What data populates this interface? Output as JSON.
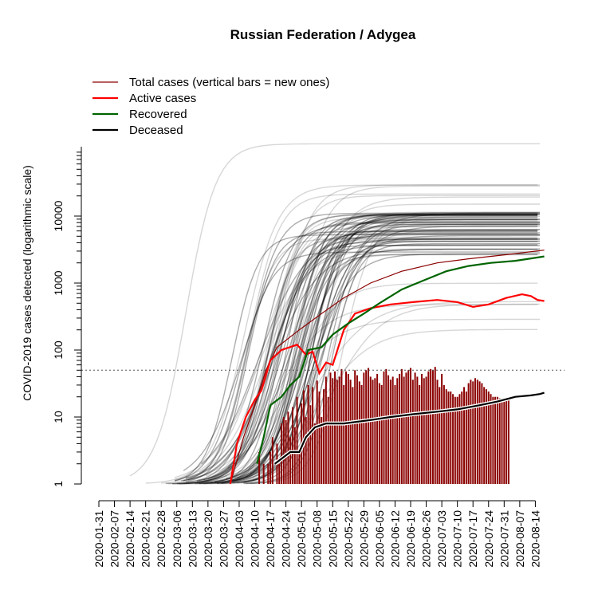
{
  "chart_data": {
    "type": "line",
    "title": "Russian Federation / Adygea",
    "xlabel": "",
    "ylabel": "COVID-2019 cases detected (logarithmic scale)",
    "y_scale": "log",
    "ylim": [
      1,
      100000
    ],
    "y_ticks": [
      1,
      10,
      100,
      1000,
      10000
    ],
    "x_tick_labels": [
      "2020-01-31",
      "2020-02-07",
      "2020-02-14",
      "2020-02-21",
      "2020-02-28",
      "2020-03-06",
      "2020-03-13",
      "2020-03-20",
      "2020-03-27",
      "2020-04-03",
      "2020-04-10",
      "2020-04-17",
      "2020-04-24",
      "2020-05-01",
      "2020-05-08",
      "2020-05-15",
      "2020-05-22",
      "2020-05-29",
      "2020-06-05",
      "2020-06-12",
      "2020-06-19",
      "2020-06-26",
      "2020-07-03",
      "2020-07-10",
      "2020-07-17",
      "2020-07-24",
      "2020-07-31",
      "2020-08-07",
      "2020-08-14"
    ],
    "reference_line": 50,
    "legend_position": "top-left",
    "legend": [
      {
        "label": "Total cases (vertical bars = new ones)",
        "color": "#8b0000"
      },
      {
        "label": "Active cases",
        "color": "#ff0000"
      },
      {
        "label": "Recovered",
        "color": "#006400"
      },
      {
        "label": "Deceased",
        "color": "#000000"
      }
    ],
    "series": [
      {
        "name": "Total cases (vertical bars = new ones)",
        "color": "#8b0000",
        "points": [
          [
            "2020-03-30",
            1
          ],
          [
            "2020-04-05",
            5
          ],
          [
            "2020-04-10",
            15
          ],
          [
            "2020-04-15",
            50
          ],
          [
            "2020-04-20",
            110
          ],
          [
            "2020-04-30",
            200
          ],
          [
            "2020-05-10",
            350
          ],
          [
            "2020-05-20",
            600
          ],
          [
            "2020-06-01",
            1000
          ],
          [
            "2020-06-15",
            1500
          ],
          [
            "2020-07-01",
            2000
          ],
          [
            "2020-07-15",
            2300
          ],
          [
            "2020-08-01",
            2650
          ],
          [
            "2020-08-18",
            3100
          ]
        ]
      },
      {
        "name": "Active cases",
        "color": "#ff0000",
        "points": [
          [
            "2020-03-30",
            1
          ],
          [
            "2020-04-02",
            4
          ],
          [
            "2020-04-06",
            10
          ],
          [
            "2020-04-10",
            18
          ],
          [
            "2020-04-13",
            25
          ],
          [
            "2020-04-17",
            70
          ],
          [
            "2020-04-22",
            100
          ],
          [
            "2020-04-29",
            120
          ],
          [
            "2020-05-03",
            85
          ],
          [
            "2020-05-06",
            95
          ],
          [
            "2020-05-09",
            45
          ],
          [
            "2020-05-12",
            65
          ],
          [
            "2020-05-15",
            60
          ],
          [
            "2020-05-20",
            200
          ],
          [
            "2020-05-25",
            350
          ],
          [
            "2020-06-01",
            420
          ],
          [
            "2020-06-10",
            480
          ],
          [
            "2020-06-20",
            520
          ],
          [
            "2020-07-01",
            560
          ],
          [
            "2020-07-10",
            520
          ],
          [
            "2020-07-17",
            440
          ],
          [
            "2020-07-24",
            480
          ],
          [
            "2020-08-01",
            600
          ],
          [
            "2020-08-08",
            680
          ],
          [
            "2020-08-12",
            640
          ],
          [
            "2020-08-15",
            560
          ],
          [
            "2020-08-18",
            540
          ]
        ]
      },
      {
        "name": "Recovered",
        "color": "#006400",
        "points": [
          [
            "2020-04-11",
            2
          ],
          [
            "2020-04-14",
            5
          ],
          [
            "2020-04-17",
            15
          ],
          [
            "2020-04-22",
            20
          ],
          [
            "2020-04-26",
            30
          ],
          [
            "2020-04-30",
            40
          ],
          [
            "2020-05-04",
            100
          ],
          [
            "2020-05-10",
            110
          ],
          [
            "2020-05-15",
            170
          ],
          [
            "2020-05-22",
            250
          ],
          [
            "2020-05-29",
            350
          ],
          [
            "2020-06-05",
            500
          ],
          [
            "2020-06-15",
            800
          ],
          [
            "2020-06-25",
            1100
          ],
          [
            "2020-07-05",
            1500
          ],
          [
            "2020-07-15",
            1800
          ],
          [
            "2020-07-25",
            2000
          ],
          [
            "2020-08-05",
            2150
          ],
          [
            "2020-08-18",
            2500
          ]
        ]
      },
      {
        "name": "Deceased",
        "color": "#000000",
        "points": [
          [
            "2020-04-19",
            2
          ],
          [
            "2020-04-26",
            3
          ],
          [
            "2020-04-30",
            3
          ],
          [
            "2020-05-03",
            5
          ],
          [
            "2020-05-07",
            7
          ],
          [
            "2020-05-12",
            8
          ],
          [
            "2020-05-20",
            8
          ],
          [
            "2020-06-01",
            9
          ],
          [
            "2020-06-10",
            10
          ],
          [
            "2020-06-20",
            11
          ],
          [
            "2020-07-01",
            12
          ],
          [
            "2020-07-10",
            13
          ],
          [
            "2020-07-20",
            15
          ],
          [
            "2020-07-28",
            17
          ],
          [
            "2020-08-05",
            20
          ],
          [
            "2020-08-12",
            21
          ],
          [
            "2020-08-16",
            22
          ],
          [
            "2020-08-18",
            23
          ]
        ]
      }
    ],
    "new_cases_bars": {
      "color": "#8b0000",
      "start": "2020-04-12",
      "values": [
        3,
        1,
        2,
        1,
        2,
        3,
        5,
        1,
        4,
        2,
        8,
        10,
        9,
        12,
        5,
        14,
        7,
        20,
        3,
        16,
        25,
        10,
        30,
        15,
        28,
        8,
        35,
        24,
        10,
        26,
        40,
        20,
        46,
        38,
        48,
        36,
        40,
        52,
        30,
        48,
        44,
        36,
        28,
        50,
        42,
        34,
        30,
        46,
        50,
        54,
        40,
        36,
        38,
        44,
        32,
        30,
        48,
        52,
        42,
        36,
        40,
        30,
        38,
        44,
        52,
        40,
        46,
        50,
        54,
        36,
        46,
        40,
        30,
        44,
        38,
        40,
        48,
        52,
        50,
        56,
        36,
        28,
        44,
        30,
        26,
        24,
        24,
        22,
        20,
        20,
        22,
        24,
        28,
        24,
        32,
        36,
        34,
        38,
        36,
        34,
        32,
        28,
        26,
        24,
        22,
        20,
        20,
        20,
        19,
        18,
        18,
        18,
        18
      ]
    },
    "comparison_series_count": 80
  }
}
